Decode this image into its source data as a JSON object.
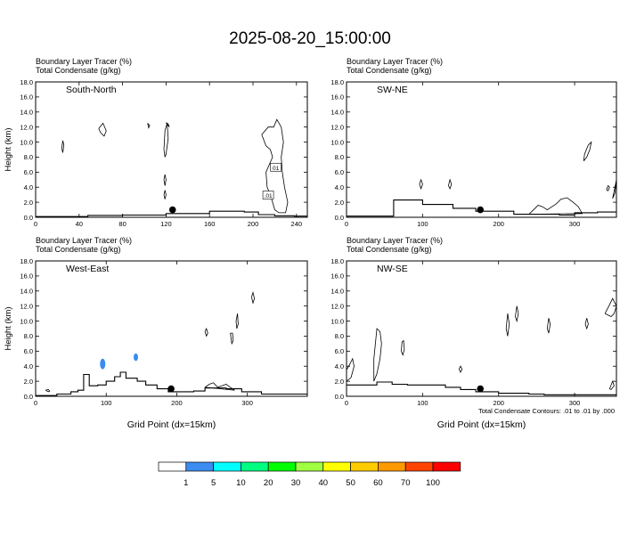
{
  "figure": {
    "title": "2025-08-20_15:00:00",
    "footnote": "Total Condensate Contours: .01 to .01 by .000"
  },
  "colorbar": {
    "labels": [
      "1",
      "5",
      "10",
      "20",
      "30",
      "40",
      "50",
      "60",
      "70",
      "100"
    ],
    "colors": [
      "#ffffff",
      "#3a8cf0",
      "#00ffff",
      "#00ff80",
      "#00ff00",
      "#a0ff40",
      "#ffff00",
      "#ffcc00",
      "#ff9900",
      "#ff4400",
      "#ff0000"
    ]
  },
  "chart_data": [
    {
      "type": "contour",
      "name_label": "South-North",
      "header_line1": "Boundary Layer Tracer   (%)",
      "header_line2": "Total Condensate   (g/kg)",
      "ylabel": "Height (km)",
      "xlabel": "",
      "xlim": [
        0,
        250
      ],
      "ylim": [
        0,
        18
      ],
      "xticks": [
        0,
        40,
        80,
        120,
        160,
        200,
        240
      ],
      "yticks": [
        "0.0",
        "2.0",
        "4.0",
        "6.0",
        "8.0",
        "10.0",
        "12.0",
        "14.0",
        "16.0",
        "18.0"
      ],
      "marker_point": [
        126,
        1.0
      ],
      "contour_labels": [
        {
          "text": "01",
          "x": 221,
          "y": 6.6
        },
        {
          "text": ".01",
          "x": 214,
          "y": 2.9
        }
      ],
      "boundary_layer": [
        [
          0,
          0.1
        ],
        [
          40,
          0.1
        ],
        [
          48,
          0.25
        ],
        [
          60,
          0.25
        ],
        [
          80,
          0.3
        ],
        [
          120,
          0.5
        ],
        [
          140,
          0.5
        ],
        [
          160,
          0.8
        ],
        [
          180,
          0.8
        ],
        [
          192,
          0.7
        ],
        [
          205,
          0.35
        ],
        [
          220,
          0.2
        ],
        [
          238,
          0.15
        ],
        [
          250,
          0.15
        ]
      ],
      "blue_cells": [],
      "condensate_contours": [
        [
          [
            24,
            9.2
          ],
          [
            25,
            10.2
          ],
          [
            26,
            9.6
          ],
          [
            25,
            8.6
          ],
          [
            24,
            9.2
          ]
        ],
        [
          [
            58,
            11.8
          ],
          [
            62,
            12.5
          ],
          [
            65,
            11.5
          ],
          [
            63,
            10.8
          ],
          [
            60,
            11.2
          ],
          [
            58,
            11.8
          ]
        ],
        [
          [
            103,
            12.5
          ],
          [
            105,
            12.2
          ],
          [
            104,
            11.9
          ],
          [
            103,
            12.5
          ]
        ],
        [
          [
            120,
            12.6
          ],
          [
            123,
            12.0
          ],
          [
            122,
            12.4
          ],
          [
            120,
            12.6
          ]
        ],
        [
          [
            118,
            9.0
          ],
          [
            119,
            8.0
          ],
          [
            120,
            8.4
          ],
          [
            122,
            10.5
          ],
          [
            121,
            12.5
          ],
          [
            119,
            11.5
          ],
          [
            118,
            9.0
          ]
        ],
        [
          [
            118,
            5.0
          ],
          [
            119,
            4.2
          ],
          [
            120,
            5.0
          ],
          [
            119,
            5.7
          ],
          [
            118,
            5.0
          ]
        ],
        [
          [
            118,
            3.0
          ],
          [
            119,
            2.4
          ],
          [
            120,
            3.0
          ],
          [
            119,
            3.6
          ],
          [
            118,
            3.0
          ]
        ],
        [
          [
            208,
            11.0
          ],
          [
            212,
            9.5
          ],
          [
            216,
            9.0
          ],
          [
            218,
            8.0
          ],
          [
            215,
            7.0
          ],
          [
            212,
            6.0
          ],
          [
            213,
            4.0
          ],
          [
            216,
            3.0
          ],
          [
            218,
            2.0
          ],
          [
            220,
            1.0
          ],
          [
            224,
            0.6
          ],
          [
            230,
            0.6
          ],
          [
            232,
            2.0
          ],
          [
            229,
            4.0
          ],
          [
            227,
            6.0
          ],
          [
            226,
            8.0
          ],
          [
            228,
            10.0
          ],
          [
            226,
            12.0
          ],
          [
            222,
            13.0
          ],
          [
            219,
            12.0
          ],
          [
            214,
            12.0
          ],
          [
            208,
            11.0
          ]
        ]
      ]
    },
    {
      "type": "contour",
      "name_label": "SW-NE",
      "header_line1": "Boundary Layer Tracer   (%)",
      "header_line2": "Total Condensate   (g/kg)",
      "ylabel": "",
      "xlabel": "",
      "xlim": [
        0,
        355
      ],
      "ylim": [
        0,
        18
      ],
      "xticks": [
        0,
        100,
        200,
        300
      ],
      "yticks": [
        "0.0",
        "2.0",
        "4.0",
        "6.0",
        "8.0",
        "10.0",
        "12.0",
        "14.0",
        "16.0",
        "18.0"
      ],
      "marker_point": [
        176,
        1.0
      ],
      "contour_labels": [],
      "boundary_layer": [
        [
          0,
          0.15
        ],
        [
          40,
          0.15
        ],
        [
          62,
          2.3
        ],
        [
          80,
          2.3
        ],
        [
          100,
          1.7
        ],
        [
          140,
          1.2
        ],
        [
          170,
          0.8
        ],
        [
          200,
          0.8
        ],
        [
          220,
          0.4
        ],
        [
          280,
          0.3
        ],
        [
          300,
          0.6
        ],
        [
          330,
          0.7
        ],
        [
          355,
          0.7
        ]
      ],
      "blue_cells": [],
      "condensate_contours": [
        [
          [
            96,
            4.4
          ],
          [
            98,
            3.8
          ],
          [
            100,
            4.4
          ],
          [
            98,
            5.0
          ],
          [
            96,
            4.4
          ]
        ],
        [
          [
            134,
            4.2
          ],
          [
            136,
            3.8
          ],
          [
            138,
            4.4
          ],
          [
            136,
            5.0
          ],
          [
            134,
            4.2
          ]
        ],
        [
          [
            240,
            0.4
          ],
          [
            246,
            1.0
          ],
          [
            252,
            1.6
          ],
          [
            258,
            1.4
          ],
          [
            264,
            1.0
          ],
          [
            270,
            1.4
          ],
          [
            276,
            1.8
          ],
          [
            282,
            2.4
          ],
          [
            290,
            2.6
          ],
          [
            298,
            2.0
          ],
          [
            305,
            1.4
          ],
          [
            310,
            0.5
          ],
          [
            240,
            0.4
          ]
        ],
        [
          [
            312,
            7.5
          ],
          [
            316,
            8.0
          ],
          [
            320,
            9.0
          ],
          [
            322,
            10.0
          ],
          [
            318,
            9.6
          ],
          [
            313,
            8.4
          ],
          [
            312,
            7.5
          ]
        ],
        [
          [
            344,
            3.5
          ],
          [
            346,
            4.0
          ],
          [
            344,
            4.2
          ],
          [
            342,
            3.7
          ],
          [
            344,
            3.5
          ]
        ],
        [
          [
            350,
            2.5
          ],
          [
            355,
            5.0
          ],
          [
            353,
            3.2
          ],
          [
            350,
            2.5
          ]
        ]
      ]
    },
    {
      "type": "contour",
      "name_label": "West-East",
      "header_line1": "Boundary Layer Tracer   (%)",
      "header_line2": "Total Condensate   (g/kg)",
      "ylabel": "Height (km)",
      "xlabel": "Grid Point (dx=15km)",
      "xlim": [
        0,
        385
      ],
      "ylim": [
        0,
        18
      ],
      "xticks": [
        0,
        100,
        200,
        300
      ],
      "yticks": [
        "0.0",
        "2.0",
        "4.0",
        "6.0",
        "8.0",
        "10.0",
        "12.0",
        "14.0",
        "16.0",
        "18.0"
      ],
      "marker_point": [
        192,
        1.0
      ],
      "contour_labels": [],
      "boundary_layer": [
        [
          0,
          0.1
        ],
        [
          30,
          0.3
        ],
        [
          50,
          0.6
        ],
        [
          60,
          0.8
        ],
        [
          68,
          2.9
        ],
        [
          76,
          1.4
        ],
        [
          88,
          1.5
        ],
        [
          100,
          2.0
        ],
        [
          112,
          2.6
        ],
        [
          120,
          3.2
        ],
        [
          128,
          2.4
        ],
        [
          144,
          2.0
        ],
        [
          156,
          1.5
        ],
        [
          172,
          1.0
        ],
        [
          188,
          0.6
        ],
        [
          224,
          0.7
        ],
        [
          240,
          1.1
        ],
        [
          270,
          1.0
        ],
        [
          292,
          0.6
        ],
        [
          320,
          0.3
        ],
        [
          385,
          0.2
        ]
      ],
      "blue_cells": [
        [
          95,
          4.3,
          3,
          0.7
        ],
        [
          142,
          5.2,
          2.5,
          0.5
        ]
      ],
      "condensate_contours": [
        [
          [
            14,
            0.8
          ],
          [
            18,
            0.6
          ],
          [
            20,
            0.7
          ],
          [
            18,
            0.9
          ],
          [
            14,
            0.8
          ]
        ],
        [
          [
            240,
            8.6
          ],
          [
            242,
            8.0
          ],
          [
            244,
            8.4
          ],
          [
            242,
            9.0
          ],
          [
            240,
            8.6
          ]
        ],
        [
          [
            276,
            8.4
          ],
          [
            278,
            7.0
          ],
          [
            280,
            7.4
          ],
          [
            279,
            8.4
          ],
          [
            276,
            8.4
          ]
        ],
        [
          [
            284,
            10.0
          ],
          [
            285,
            9.0
          ],
          [
            287,
            9.6
          ],
          [
            286,
            11.0
          ],
          [
            284,
            10.0
          ]
        ],
        [
          [
            306,
            13.2
          ],
          [
            308,
            12.4
          ],
          [
            310,
            13.0
          ],
          [
            308,
            13.8
          ],
          [
            306,
            13.2
          ]
        ],
        [
          [
            240,
            1.2
          ],
          [
            246,
            1.6
          ],
          [
            252,
            1.8
          ],
          [
            258,
            1.2
          ],
          [
            264,
            1.4
          ],
          [
            270,
            1.6
          ],
          [
            276,
            1.2
          ],
          [
            282,
            0.8
          ],
          [
            240,
            1.2
          ]
        ]
      ]
    },
    {
      "type": "contour",
      "name_label": "NW-SE",
      "header_line1": "Boundary Layer Tracer   (%)",
      "header_line2": "Total Condensate   (g/kg)",
      "ylabel": "",
      "xlabel": "Grid Point (dx=15km)",
      "xlim": [
        0,
        355
      ],
      "ylim": [
        0,
        18
      ],
      "xticks": [
        0,
        100,
        200,
        300
      ],
      "yticks": [
        "0.0",
        "2.0",
        "4.0",
        "6.0",
        "8.0",
        "10.0",
        "12.0",
        "14.0",
        "16.0",
        "18.0"
      ],
      "marker_point": [
        176,
        1.0
      ],
      "contour_labels": [],
      "boundary_layer": [
        [
          0,
          1.5
        ],
        [
          20,
          1.5
        ],
        [
          40,
          1.9
        ],
        [
          60,
          1.6
        ],
        [
          80,
          1.5
        ],
        [
          100,
          1.5
        ],
        [
          130,
          1.2
        ],
        [
          150,
          0.9
        ],
        [
          170,
          0.6
        ],
        [
          200,
          0.4
        ],
        [
          240,
          0.3
        ],
        [
          260,
          0.2
        ],
        [
          355,
          0.2
        ]
      ],
      "blue_cells": [],
      "condensate_contours": [
        [
          [
            0,
            2.0
          ],
          [
            6,
            2.5
          ],
          [
            10,
            4.0
          ],
          [
            8,
            5.0
          ],
          [
            4,
            4.2
          ],
          [
            0,
            3.5
          ],
          [
            0,
            2.0
          ]
        ],
        [
          [
            36,
            2.0
          ],
          [
            40,
            3.0
          ],
          [
            44,
            5.0
          ],
          [
            46,
            7.0
          ],
          [
            44,
            8.6
          ],
          [
            40,
            9.0
          ],
          [
            38,
            7.0
          ],
          [
            36,
            5.0
          ],
          [
            36,
            2.0
          ]
        ],
        [
          [
            72,
            6.0
          ],
          [
            74,
            5.5
          ],
          [
            76,
            6.2
          ],
          [
            75,
            7.4
          ],
          [
            73,
            7.2
          ],
          [
            72,
            6.0
          ]
        ],
        [
          [
            148,
            3.6
          ],
          [
            150,
            3.2
          ],
          [
            152,
            3.6
          ],
          [
            150,
            4.0
          ],
          [
            148,
            3.6
          ]
        ],
        [
          [
            210,
            9.0
          ],
          [
            212,
            8.0
          ],
          [
            214,
            9.6
          ],
          [
            212,
            11.0
          ],
          [
            210,
            9.0
          ]
        ],
        [
          [
            222,
            10.6
          ],
          [
            224,
            10.0
          ],
          [
            226,
            11.0
          ],
          [
            224,
            12.0
          ],
          [
            222,
            10.6
          ]
        ],
        [
          [
            264,
            9.0
          ],
          [
            266,
            8.4
          ],
          [
            268,
            9.6
          ],
          [
            266,
            10.4
          ],
          [
            264,
            9.0
          ]
        ],
        [
          [
            314,
            9.6
          ],
          [
            316,
            9.0
          ],
          [
            318,
            9.6
          ],
          [
            316,
            10.4
          ],
          [
            314,
            9.6
          ]
        ],
        [
          [
            340,
            11.0
          ],
          [
            345,
            12.0
          ],
          [
            350,
            13.0
          ],
          [
            355,
            12.0
          ],
          [
            352,
            11.0
          ],
          [
            348,
            10.6
          ],
          [
            340,
            11.0
          ]
        ],
        [
          [
            346,
            1.0
          ],
          [
            350,
            2.0
          ],
          [
            352,
            1.4
          ],
          [
            348,
            0.9
          ],
          [
            346,
            1.0
          ]
        ]
      ]
    }
  ]
}
